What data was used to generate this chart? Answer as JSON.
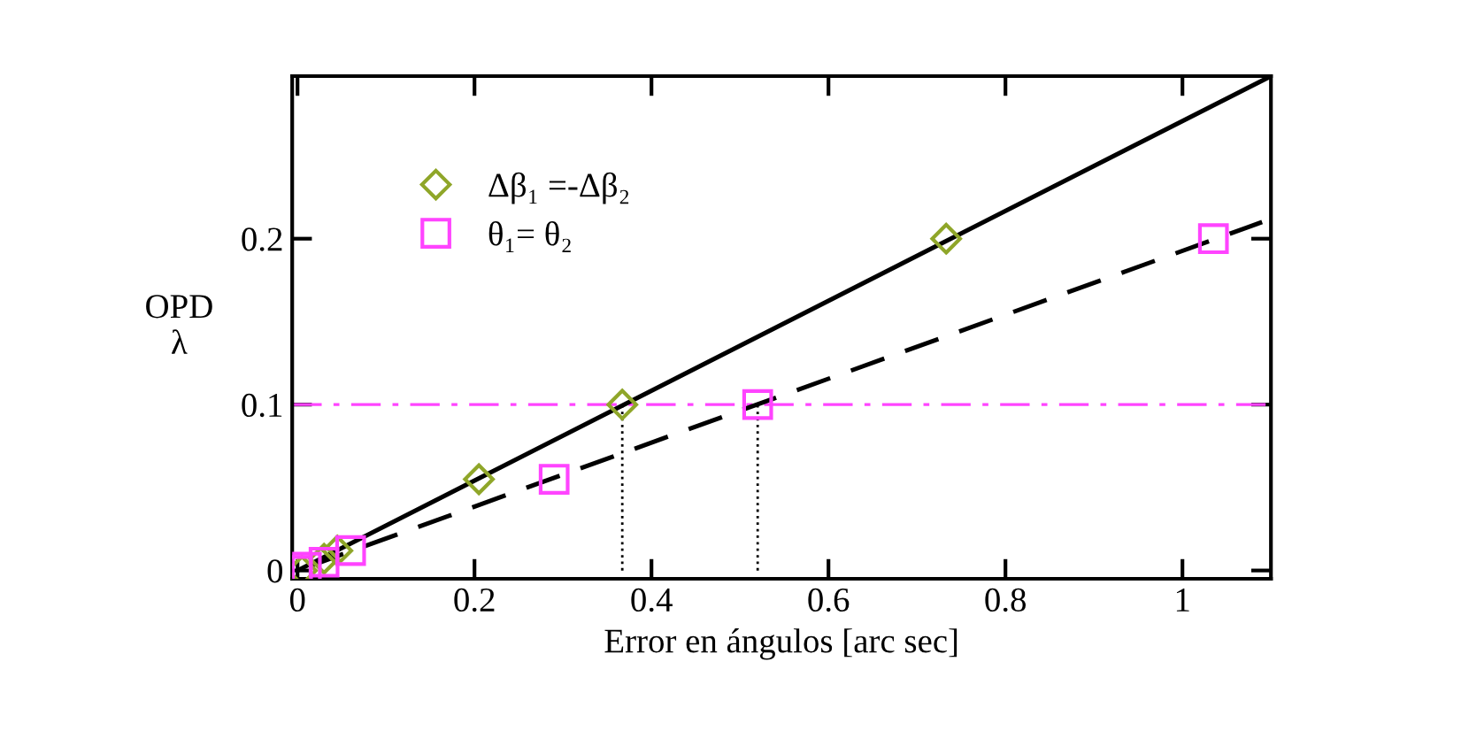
{
  "chart_data": {
    "type": "scatter",
    "xlabel": "Error en ángulos [arc sec]",
    "ylabel": "OPD\nλ",
    "xlim": [
      -0.006,
      1.1
    ],
    "ylim": [
      -0.005,
      0.298
    ],
    "xticks": [
      0,
      0.2,
      0.4,
      0.6,
      0.8,
      1
    ],
    "yticks": [
      0,
      0.1,
      0.2
    ],
    "grid": false,
    "legend": "top left",
    "series": [
      {
        "name": "Δβ₁ =-Δβ₂",
        "color": "#8fa629",
        "marker": "diamond",
        "x": [
          0.005,
          0.03,
          0.045,
          0.205,
          0.367,
          0.733
        ],
        "values": [
          0,
          0.007,
          0.012,
          0.055,
          0.1,
          0.2
        ]
      },
      {
        "name": "θ₁= θ₂",
        "color": "#ff44ff",
        "marker": "square",
        "x": [
          0,
          0.01,
          0.03,
          0.06,
          0.29,
          0.52,
          1.035
        ],
        "values": [
          0,
          0.002,
          0.005,
          0.012,
          0.055,
          0.1,
          0.2
        ]
      },
      {
        "type": "line",
        "color": "#000000",
        "line_style": "solid",
        "x": [
          0,
          1.1
        ],
        "values": [
          0,
          0.298
        ]
      },
      {
        "type": "line",
        "color": "#000000",
        "line_style": "dashed",
        "x": [
          0,
          1.09
        ],
        "values": [
          0,
          0.21
        ]
      },
      {
        "type": "line",
        "color": "#000000",
        "line_style": "dotted",
        "x": [
          0.367,
          0.367
        ],
        "values": [
          0,
          0.1
        ]
      },
      {
        "type": "line",
        "color": "#000000",
        "line_style": "dotted",
        "x": [
          0.52,
          0.52
        ],
        "values": [
          0,
          0.1
        ]
      }
    ],
    "ref_lines": [
      {
        "axis": "y",
        "value": 0.1,
        "color": "#ff44ff",
        "line_style": "dashdot"
      }
    ]
  }
}
